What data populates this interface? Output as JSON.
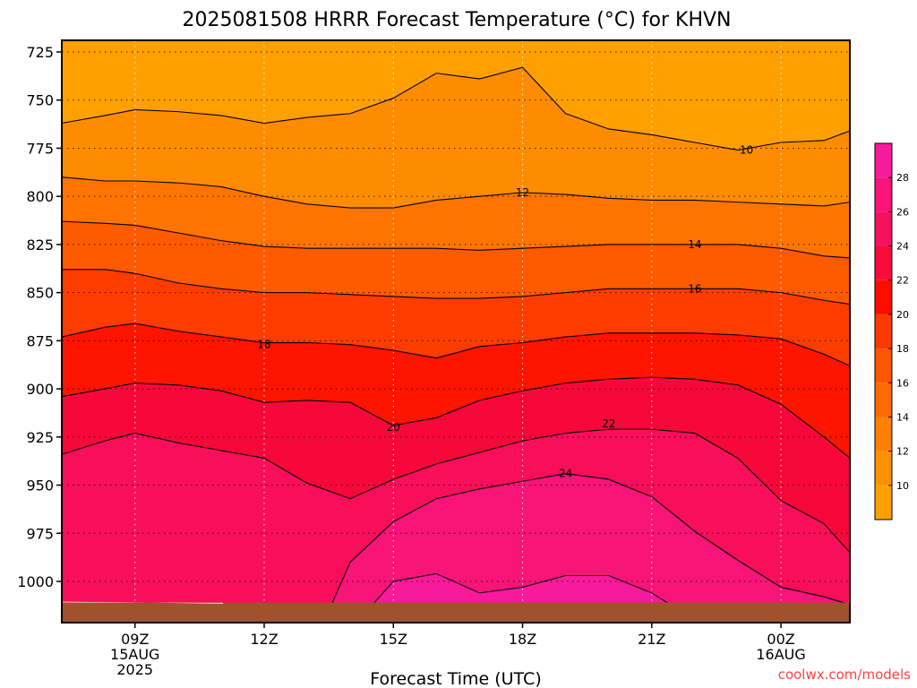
{
  "chart_data": {
    "type": "heatmap",
    "title": "2025081508 HRRR Forecast Temperature (°C) for KHVN",
    "xlabel": "Forecast Time (UTC)",
    "ylabel": "",
    "y_scale": "pressure (hPa, increasing downward)",
    "ylim": [
      1020,
      714
    ],
    "xlim": [
      7.3,
      25.6
    ],
    "y_ticks": [
      725,
      750,
      775,
      800,
      825,
      850,
      875,
      900,
      925,
      950,
      975,
      1000
    ],
    "x_ticks": [
      {
        "x": 9,
        "lines": [
          "09Z",
          "15AUG",
          "2025"
        ]
      },
      {
        "x": 12,
        "lines": [
          "12Z"
        ]
      },
      {
        "x": 15,
        "lines": [
          "15Z"
        ]
      },
      {
        "x": 18,
        "lines": [
          "18Z"
        ]
      },
      {
        "x": 21,
        "lines": [
          "21Z"
        ]
      },
      {
        "x": 24,
        "lines": [
          "00Z",
          "16AUG"
        ]
      }
    ],
    "grid": true,
    "ground_color": "#a0522d",
    "x": [
      7.3,
      8.3,
      9,
      10,
      11,
      12,
      13,
      14,
      15,
      16,
      17,
      18,
      19,
      20,
      21,
      22,
      23,
      24,
      25,
      25.6
    ],
    "isotherms": [
      {
        "value": 10,
        "label_at": [
          23.2,
          776
        ],
        "p": [
          762,
          758,
          755,
          756,
          758,
          762,
          759,
          757,
          749,
          736,
          739,
          733,
          757,
          765,
          768,
          772,
          776,
          772,
          771,
          766
        ]
      },
      {
        "value": 12,
        "label_at": [
          18.0,
          798
        ],
        "p": [
          790,
          792,
          792,
          793,
          795,
          800,
          804,
          806,
          806,
          802,
          800,
          798,
          799,
          801,
          802,
          802,
          803,
          804,
          805,
          803
        ]
      },
      {
        "value": 14,
        "label_at": [
          22.0,
          825
        ],
        "p": [
          813,
          814,
          815,
          819,
          823,
          826,
          827,
          827,
          827,
          827,
          828,
          827,
          826,
          825,
          825,
          825,
          825,
          827,
          831,
          832
        ]
      },
      {
        "value": 16,
        "label_at": [
          22.0,
          848
        ],
        "p": [
          838,
          838,
          840,
          845,
          848,
          850,
          850,
          851,
          852,
          853,
          853,
          852,
          850,
          848,
          848,
          848,
          848,
          850,
          854,
          856
        ]
      },
      {
        "value": 18,
        "label_at": [
          12.0,
          877
        ],
        "p": [
          873,
          868,
          866,
          870,
          873,
          876,
          876,
          877,
          880,
          884,
          878,
          876,
          873,
          871,
          871,
          871,
          872,
          874,
          882,
          888
        ]
      },
      {
        "value": 20,
        "label_at": [
          15.0,
          920
        ],
        "p": [
          904,
          900,
          897,
          898,
          901,
          907,
          906,
          907,
          919,
          915,
          906,
          901,
          897,
          895,
          894,
          895,
          898,
          908,
          925,
          936
        ]
      },
      {
        "value": 22,
        "label_at": [
          20.0,
          918
        ],
        "p": [
          934,
          927,
          923,
          928,
          932,
          936,
          949,
          957,
          947,
          939,
          933,
          927,
          923,
          921,
          921,
          923,
          936,
          958,
          970,
          985
        ]
      },
      {
        "value": 24,
        "label_at": [
          19.0,
          944
        ],
        "p": [
          null,
          null,
          null,
          null,
          null,
          null,
          null,
          990,
          969,
          957,
          952,
          948,
          944,
          947,
          956,
          974,
          989,
          1003,
          1008,
          1012
        ]
      }
    ],
    "colorbar": {
      "ticks": [
        10,
        12,
        14,
        16,
        18,
        20,
        22,
        24,
        26,
        28
      ],
      "levels": [
        8,
        10,
        12,
        14,
        16,
        18,
        20,
        22,
        24,
        26,
        28,
        30
      ],
      "colors": [
        "#ffa000",
        "#ff9000",
        "#ff7f00",
        "#ff6a00",
        "#ff5400",
        "#ff3800",
        "#ff0c00",
        "#f80a3c",
        "#f81060",
        "#f8147a",
        "#f81a9c",
        "#f820c0"
      ]
    },
    "fill_colors": {
      "t_lt_10": "#ffa000",
      "t_10_12": "#ff8c00",
      "t_12_14": "#ff7400",
      "t_14_16": "#ff5a00",
      "t_16_18": "#ff3c00",
      "t_18_20": "#ff1400",
      "t_20_22": "#f8083a",
      "t_22_24": "#f80e5a",
      "t_24_26": "#f81478",
      "t_ge_26": "#f81a9a"
    }
  },
  "credit": "coolwx.com/models"
}
